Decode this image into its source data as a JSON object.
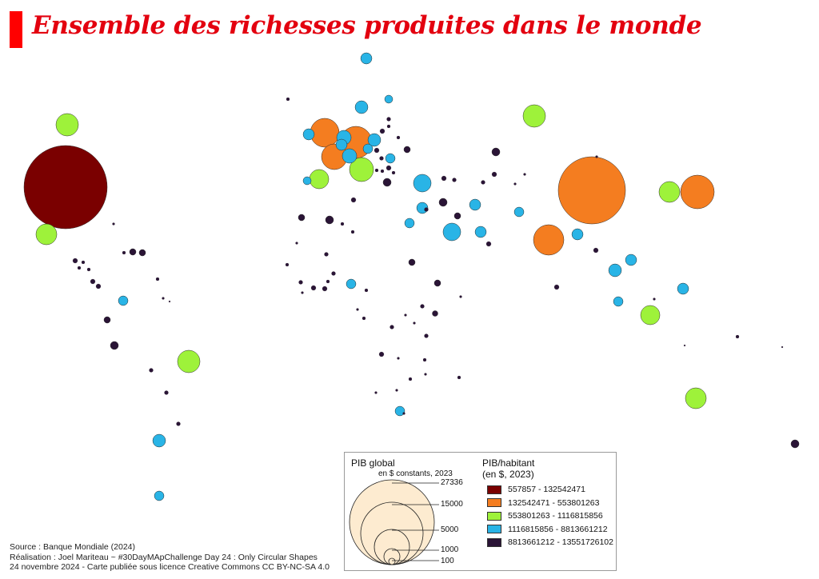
{
  "title": "Ensemble des richesses produites dans le monde",
  "colors": {
    "title": "#e3000f",
    "title_bar": "#ff0000",
    "legend_disc_fill": "#fdebd0",
    "class_colors": [
      "#7a0000",
      "#f47d20",
      "#9ef23a",
      "#29b4e6",
      "#2a1436"
    ]
  },
  "legend": {
    "size_title": "PIB global",
    "size_subtitle": "en $ constants, 2023",
    "size_values": [
      "27336",
      "15000",
      "5000",
      "1000",
      "100"
    ],
    "class_title_line1": "PIB/habitant",
    "class_title_line2": "(en $, 2023)",
    "classes": [
      "557857 - 132542471",
      "132542471 - 553801263",
      "553801263 - 1116815856",
      "1116815856 - 8813661212",
      "8813661212 - 13551726102"
    ]
  },
  "credits": [
    "Source : Banque Mondiale (2024)",
    "Réalisation : Joel Mariteau ~ #30DayMApChallenge Day 24 : Only Circular Shapes",
    "24 novembre 2024 - Carte publiée sous licence Creative Commons  CC BY-NC-SA 4.0"
  ]
}
